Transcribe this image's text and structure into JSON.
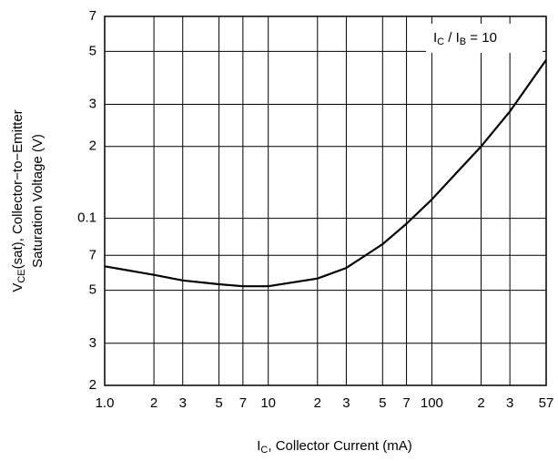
{
  "chart_data": {
    "type": "line",
    "xlabel": [
      "I",
      "C",
      ", Collector Current (mA)"
    ],
    "ylabel": [
      [
        "V",
        "CE",
        "(sat), Collector−to−Emitter"
      ],
      [
        "Saturation Voltage (V)"
      ]
    ],
    "annotation": [
      "I",
      "C",
      " / I",
      "B",
      " = 10"
    ],
    "x": [
      1,
      2,
      3,
      5,
      7,
      10,
      20,
      30,
      50,
      70,
      100,
      200,
      300,
      500
    ],
    "series": [
      {
        "color": "#000000",
        "values": [
          0.063,
          0.058,
          0.055,
          0.053,
          0.052,
          0.052,
          0.056,
          0.062,
          0.078,
          0.095,
          0.12,
          0.2,
          0.28,
          0.46
        ]
      }
    ],
    "xlim": [
      1,
      500
    ],
    "ylim": [
      0.02,
      0.7
    ],
    "log_x": true,
    "log_y": true,
    "grid": true,
    "xticks": [
      {
        "value": 1,
        "label": "1.0"
      },
      2,
      3,
      5,
      7,
      10,
      {
        "value": 20,
        "label": "2"
      },
      {
        "value": 30,
        "label": "3"
      },
      {
        "value": 50,
        "label": "5"
      },
      {
        "value": 70,
        "label": "7"
      },
      100,
      {
        "value": 200,
        "label": "2"
      },
      {
        "value": 300,
        "label": "3"
      },
      {
        "value": 500,
        "label": "57"
      }
    ],
    "yticks": [
      {
        "value": 0.7,
        "label": "7"
      },
      {
        "value": 0.5,
        "label": "5"
      },
      {
        "value": 0.3,
        "label": "3"
      },
      {
        "value": 0.2,
        "label": "2"
      },
      0.1,
      {
        "value": 0.07,
        "label": "7"
      },
      {
        "value": 0.05,
        "label": "5"
      },
      {
        "value": 0.03,
        "label": "3"
      },
      {
        "value": 0.02,
        "label": "2"
      }
    ]
  }
}
